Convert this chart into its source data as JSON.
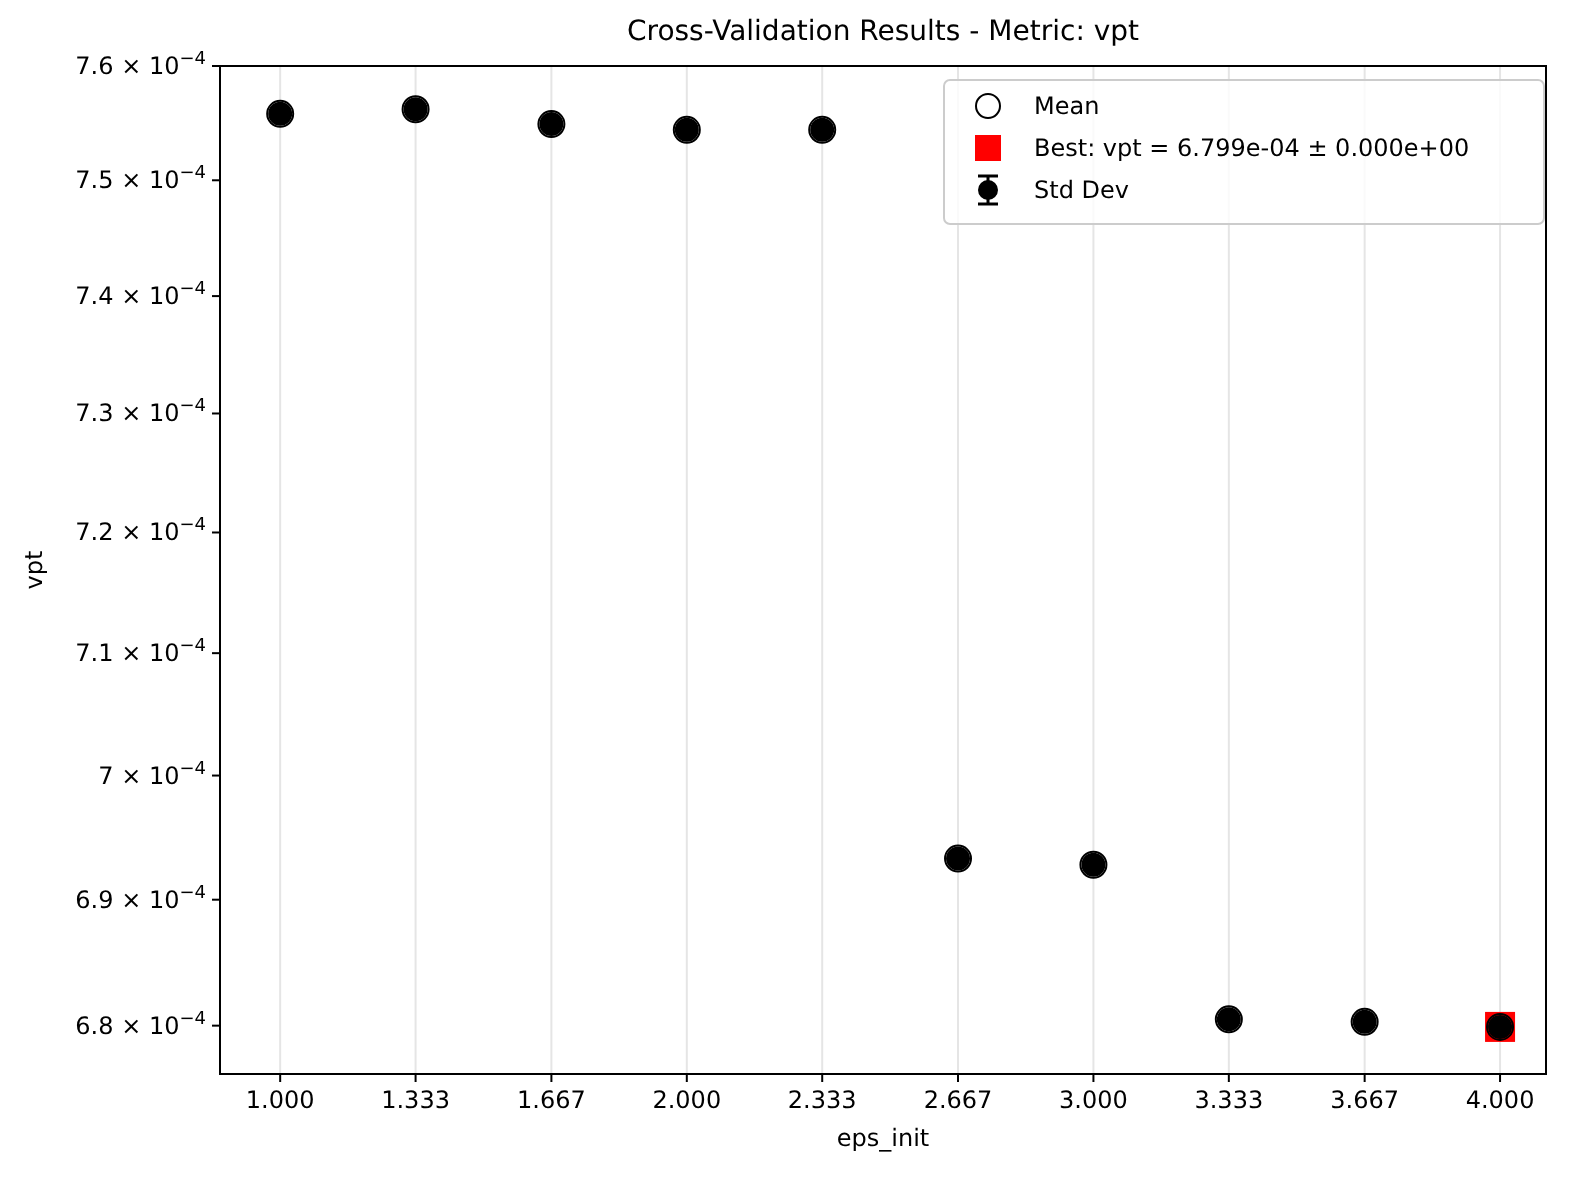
{
  "chart_data": {
    "type": "scatter",
    "title": "Cross-Validation Results - Metric: vpt",
    "xlabel": "eps_init",
    "ylabel": "vpt",
    "x": [
      1.0,
      1.333,
      1.667,
      2.0,
      2.333,
      2.667,
      3.0,
      3.333,
      3.667,
      4.0
    ],
    "series": [
      {
        "name": "Best: vpt = 6.799e-04 ± 0.000e+00",
        "marker": "square",
        "color": "#ff0000",
        "values": [
          null,
          null,
          null,
          null,
          null,
          null,
          null,
          null,
          null,
          0.0006799
        ]
      },
      {
        "name": "Std Dev",
        "marker": "circle",
        "color": "#000000",
        "values": [
          0.0007558,
          0.0007562,
          0.0007549,
          0.0007544,
          0.0007544,
          0.0006933,
          0.0006928,
          0.0006805,
          0.0006803,
          0.0006799
        ],
        "errors": [
          0,
          0,
          0,
          0,
          0,
          0,
          0,
          0,
          0,
          0
        ]
      },
      {
        "name": "Mean",
        "marker": "circle",
        "color": "#000000",
        "values": [
          0.0007558,
          0.0007562,
          0.0007549,
          0.0007544,
          0.0007544,
          0.0006933,
          0.0006928,
          0.0006805,
          0.0006803,
          0.0006799
        ]
      }
    ],
    "log": "y",
    "xlim": [
      0.852,
      4.113
    ],
    "ylim": [
      0.0006762,
      0.00076
    ],
    "xticks": [
      {
        "value": 1.0,
        "label": "1.000"
      },
      {
        "value": 1.333,
        "label": "1.333"
      },
      {
        "value": 1.667,
        "label": "1.667"
      },
      {
        "value": 2.0,
        "label": "2.000"
      },
      {
        "value": 2.333,
        "label": "2.333"
      },
      {
        "value": 2.667,
        "label": "2.667"
      },
      {
        "value": 3.0,
        "label": "3.000"
      },
      {
        "value": 3.333,
        "label": "3.333"
      },
      {
        "value": 3.667,
        "label": "3.667"
      },
      {
        "value": 4.0,
        "label": "4.000"
      }
    ],
    "yticks": [
      {
        "value": 0.00068,
        "label": "6.8 × 10$^{−4}$"
      },
      {
        "value": 0.00069,
        "label": "6.9 × 10$^{−4}$"
      },
      {
        "value": 0.0007,
        "label": "7 × 10$^{−4}$"
      },
      {
        "value": 0.00071,
        "label": "7.1 × 10$^{−4}$"
      },
      {
        "value": 0.00072,
        "label": "7.2 × 10$^{−4}$"
      },
      {
        "value": 0.00073,
        "label": "7.3 × 10$^{−4}$"
      },
      {
        "value": 0.00074,
        "label": "7.4 × 10$^{−4}$"
      },
      {
        "value": 0.00075,
        "label": "7.5 × 10$^{−4}$"
      },
      {
        "value": 0.00076,
        "label": "7.6 × 10$^{−4}$"
      }
    ],
    "grid": "x",
    "legend": "top right"
  }
}
